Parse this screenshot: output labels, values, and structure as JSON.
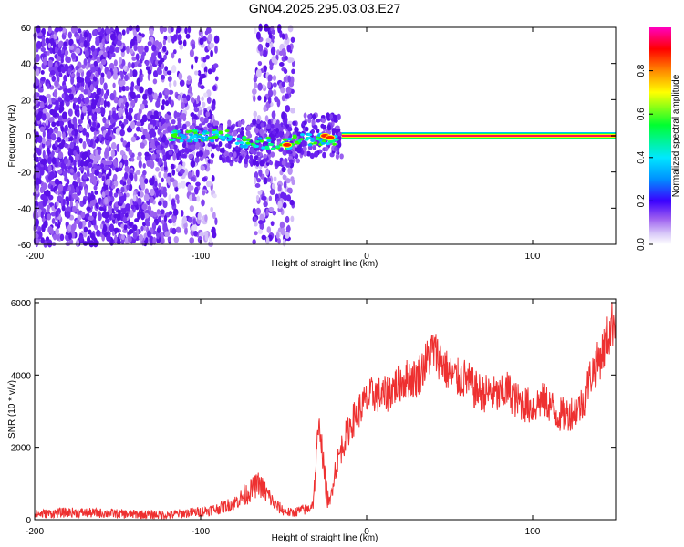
{
  "title": "GN04.2025.295.03.03.E27",
  "chart_data": [
    {
      "type": "heatmap",
      "xlabel": "Height of straight line (km)",
      "ylabel": "Frequency (Hz)",
      "xlim": [
        -200,
        150
      ],
      "ylim": [
        -60,
        60
      ],
      "xticks": [
        -200,
        -100,
        0,
        100
      ],
      "yticks": [
        -60,
        -40,
        -20,
        0,
        20,
        40,
        60
      ],
      "colorbar": {
        "label": "Normalized spectral amplitude",
        "range": [
          0,
          1
        ],
        "ticks": [
          0.0,
          0.2,
          0.4,
          0.6,
          0.8
        ]
      },
      "features": {
        "noise_region_km": [
          -200,
          -90
        ],
        "noise_band_km": [
          -68,
          -44
        ],
        "carrier_start_km": -15,
        "carrier_frequency_hz": 0,
        "carrier_peak_amplitude": 1.0
      }
    },
    {
      "type": "line",
      "xlabel": "Height of straight line (km)",
      "ylabel": "SNR (10 * v/v)",
      "xlim": [
        -200,
        150
      ],
      "ylim": [
        0,
        6100
      ],
      "xticks": [
        -200,
        -100,
        0,
        100
      ],
      "yticks": [
        0,
        2000,
        4000,
        6000
      ],
      "series": [
        {
          "name": "SNR",
          "color": "#ee3030",
          "x": [
            -200,
            -180,
            -160,
            -140,
            -120,
            -100,
            -90,
            -80,
            -70,
            -65,
            -60,
            -55,
            -50,
            -45,
            -40,
            -35,
            -32,
            -30,
            -28,
            -26,
            -24,
            -22,
            -20,
            -15,
            -10,
            -5,
            0,
            5,
            10,
            15,
            20,
            25,
            30,
            35,
            40,
            45,
            50,
            55,
            60,
            65,
            70,
            75,
            80,
            85,
            90,
            95,
            100,
            105,
            110,
            115,
            120,
            125,
            130,
            135,
            140,
            145,
            150
          ],
          "values": [
            150,
            200,
            180,
            150,
            130,
            220,
            300,
            450,
            800,
            1000,
            700,
            400,
            250,
            180,
            250,
            300,
            500,
            2000,
            2600,
            1500,
            700,
            400,
            1200,
            2000,
            2600,
            3000,
            3300,
            3500,
            3400,
            3600,
            3800,
            3900,
            3900,
            4300,
            4700,
            4400,
            4000,
            3900,
            3900,
            3600,
            3500,
            3500,
            3400,
            3600,
            3300,
            3200,
            3100,
            3300,
            3200,
            2900,
            2900,
            3000,
            3200,
            4000,
            4400,
            5000,
            5700
          ]
        }
      ]
    }
  ]
}
